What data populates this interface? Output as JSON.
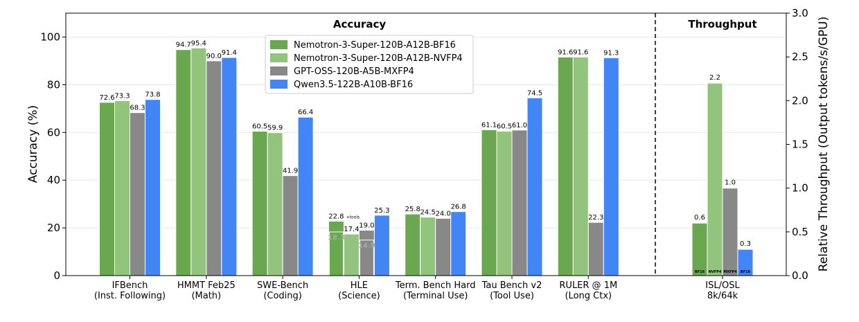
{
  "chart_data": {
    "type": "bar",
    "sections": {
      "accuracy_title": "Accuracy",
      "throughput_title": "Throughput"
    },
    "ylabel": "Accuracy (%)",
    "y2label": "Relative Throughput (Output tokens/s/GPU)",
    "ylim": [
      0,
      110
    ],
    "y2lim": [
      0,
      3.0
    ],
    "yticks": [
      "0",
      "20",
      "40",
      "60",
      "80",
      "100"
    ],
    "y2ticks": [
      "0.0",
      "0.5",
      "1.0",
      "1.5",
      "2.0",
      "2.5",
      "3.0"
    ],
    "grid": "horizontal",
    "legend_position": "top-center",
    "series": [
      {
        "name": "Nemotron-3-Super-120B-A12B-BF16",
        "color": "#6aa84f"
      },
      {
        "name": "Nemotron-3-Super-120B-A12B-NVFP4",
        "color": "#93c47d"
      },
      {
        "name": "GPT-OSS-120B-A5B-MXFP4",
        "color": "#888888"
      },
      {
        "name": "Qwen3.5-122B-A10B-BF16",
        "color": "#4285f4"
      }
    ],
    "categories": [
      {
        "line1": "IFBench",
        "line2": "(Inst. Following)",
        "values": [
          72.6,
          73.3,
          68.3,
          73.8
        ],
        "labels": [
          "72.6",
          "73.3",
          "68.3",
          "73.8"
        ]
      },
      {
        "line1": "HMMT Feb25",
        "line2": "(Math)",
        "values": [
          94.7,
          95.4,
          90.0,
          91.4
        ],
        "labels": [
          "94.7",
          "95.4",
          "90.0",
          "91.4"
        ]
      },
      {
        "line1": "SWE-Bench",
        "line2": "(Coding)",
        "values": [
          60.5,
          59.9,
          41.9,
          66.4
        ],
        "labels": [
          "60.5",
          "59.9",
          "41.9",
          "66.4"
        ]
      },
      {
        "line1": "HLE",
        "line2": "(Science)",
        "values": [
          22.8,
          17.4,
          19.0,
          25.3
        ],
        "labels": [
          "22.8",
          "17.4",
          "19.0",
          "25.3"
        ],
        "inner_values": [
          18.3,
          null,
          14.9,
          null
        ],
        "inner_labels": [
          "18.3",
          "",
          "14.9",
          ""
        ],
        "note": "+tools"
      },
      {
        "line1": "Term. Bench Hard",
        "line2": "(Terminal Use)",
        "values": [
          25.8,
          24.5,
          24.0,
          26.8
        ],
        "labels": [
          "25.8",
          "24.5",
          "24.0",
          "26.8"
        ]
      },
      {
        "line1": "Tau Bench v2",
        "line2": "(Tool Use)",
        "values": [
          61.1,
          60.5,
          61.0,
          74.5
        ],
        "labels": [
          "61.1",
          "60.5",
          "61.0",
          "74.5"
        ]
      },
      {
        "line1": "RULER @ 1M",
        "line2": "(Long Ctx)",
        "values": [
          91.6,
          91.6,
          22.3,
          91.3
        ],
        "labels": [
          "91.6",
          "91.6",
          "22.3",
          "91.3"
        ]
      }
    ],
    "throughput": {
      "line1": "ISL/OSL",
      "line2": "8k/64k",
      "values": [
        0.6,
        2.2,
        1.0,
        0.3
      ],
      "labels": [
        "0.6",
        "2.2",
        "1.0",
        "0.3"
      ],
      "bar_tags": [
        "BF16",
        "NVFP4",
        "MXFP4",
        "BF16"
      ]
    }
  }
}
